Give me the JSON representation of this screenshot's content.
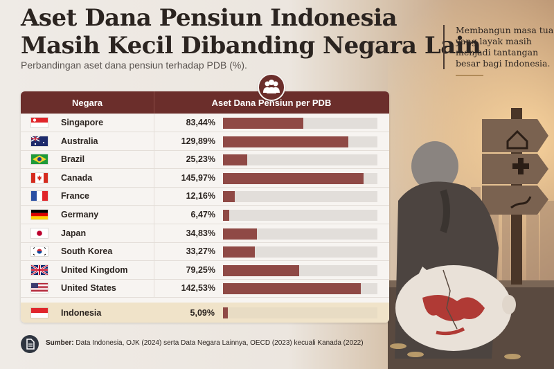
{
  "title_line1": "Aset Dana Pensiun Indonesia",
  "title_line2": "Masih Kecil Dibanding Negara Lain",
  "subtitle": "Perbandingan aset dana pensiun terhadap PDB (%).",
  "side_note": "Membangun masa tua yang layak masih menjadi tantangan besar bagi Indonesia.",
  "table_header": {
    "country": "Negara",
    "value": "Aset Dana Pensiun per PDB"
  },
  "source_label": "Sumber:",
  "source_text": "Data Indonesia, OJK (2024) serta Data Negara Lainnya, OECD (2023) kecuali Kanada (2022)",
  "colors": {
    "bar": "#8f4945",
    "header": "#6b2e2b",
    "highlight": "#f0e3c9"
  },
  "chart_data": {
    "type": "bar",
    "title": "Aset Dana Pensiun Indonesia Masih Kecil Dibanding Negara Lain",
    "subtitle": "Perbandingan aset dana pensiun terhadap PDB (%).",
    "xlabel": "Negara",
    "ylabel": "Aset Dana Pensiun per PDB",
    "ylim": [
      0,
      160
    ],
    "categories": [
      "Singapore",
      "Australia",
      "Brazil",
      "Canada",
      "France",
      "Germany",
      "Japan",
      "South Korea",
      "United Kingdom",
      "United States",
      "Indonesia"
    ],
    "labels": [
      "83,44%",
      "129,89%",
      "25,23%",
      "145,97%",
      "12,16%",
      "6,47%",
      "34,83%",
      "33,27%",
      "79,25%",
      "142,53%",
      "5,09%"
    ],
    "values": [
      83.44,
      129.89,
      25.23,
      145.97,
      12.16,
      6.47,
      34.83,
      33.27,
      79.25,
      142.53,
      5.09
    ],
    "highlight": "Indonesia"
  },
  "flags": [
    "singapore-flag",
    "australia-flag",
    "brazil-flag",
    "canada-flag",
    "france-flag",
    "germany-flag",
    "japan-flag",
    "south-korea-flag",
    "united-kingdom-flag",
    "united-states-flag",
    "indonesia-flag"
  ]
}
